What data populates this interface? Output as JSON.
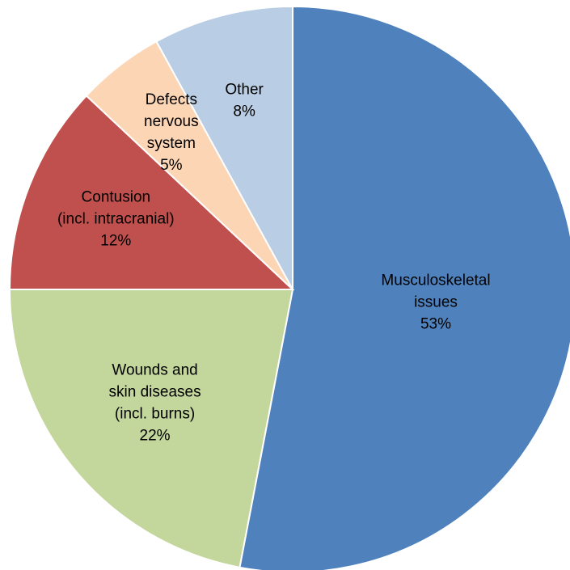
{
  "chart_data": {
    "type": "pie",
    "categories": [
      "Musculoskeletal\nissues",
      "Wounds and\nskin diseases\n(incl. burns)",
      "Contusion\n(incl. intracranial)",
      "Defects\nnervous\nsystem",
      "Other"
    ],
    "values": [
      53,
      22,
      12,
      5,
      8
    ],
    "value_labels": [
      "53%",
      "22%",
      "12%",
      "5%",
      "8%"
    ],
    "colors": [
      "#4f81bd",
      "#c3d69b",
      "#c0504d",
      "#fcd5b5",
      "#b9cde5"
    ]
  }
}
